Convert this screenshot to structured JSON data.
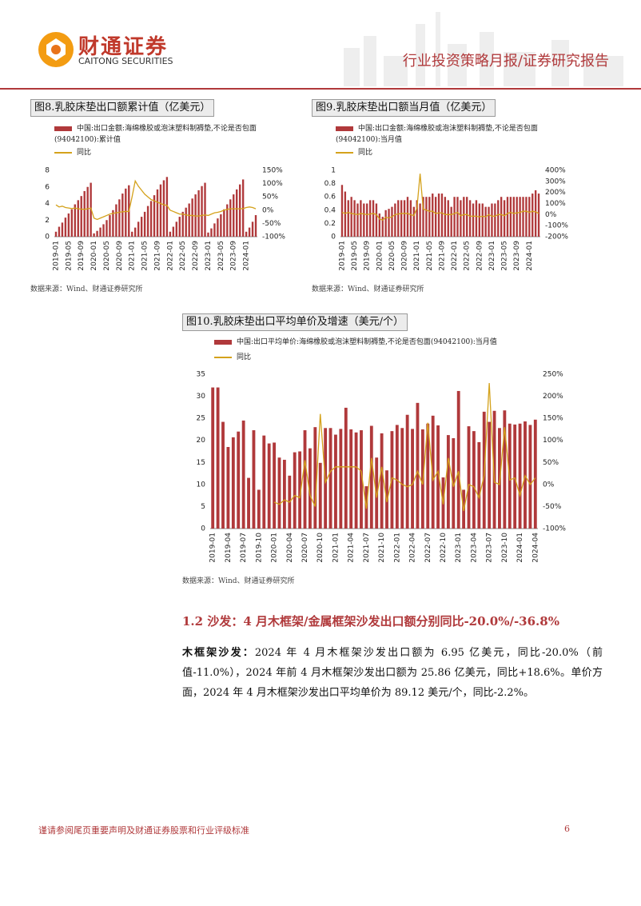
{
  "header": {
    "company_cn": "财通证券",
    "company_en": "CAITONG SECURITIES",
    "report_type": "行业投资策略月报/证券研究报告"
  },
  "chart_data": [
    {
      "type": "combo",
      "title": "图8.乳胶床垫出口额累计值（亿美元）",
      "source": "数据来源：Wind、财通证券研究所",
      "categories": [
        "2019-01",
        null,
        null,
        null,
        "2019-05",
        null,
        null,
        null,
        "2019-09",
        null,
        null,
        null,
        "2020-01",
        null,
        null,
        null,
        "2020-05",
        null,
        null,
        null,
        "2020-09",
        null,
        null,
        null,
        "2021-01",
        null,
        null,
        null,
        "2021-05",
        null,
        null,
        null,
        "2021-09",
        null,
        null,
        null,
        "2022-01",
        null,
        null,
        null,
        "2022-05",
        null,
        null,
        null,
        "2022-09",
        null,
        null,
        null,
        "2023-01",
        null,
        null,
        null,
        "2023-05",
        null,
        null,
        null,
        "2023-09",
        null,
        null,
        null,
        "2024-01",
        null,
        null,
        null
      ],
      "ylim": [
        0,
        8
      ],
      "yticks": [
        0,
        2,
        4,
        6,
        8
      ],
      "y2lim": [
        -100,
        150
      ],
      "y2ticks": [
        {
          "value": -100,
          "label": "-100%"
        },
        {
          "value": -50,
          "label": "-50%"
        },
        {
          "value": 0,
          "label": "0%"
        },
        {
          "value": 50,
          "label": "50%"
        },
        {
          "value": 100,
          "label": "100%"
        },
        {
          "value": 150,
          "label": "150%"
        }
      ],
      "grid": false,
      "series": [
        {
          "name": "中国:出口金额:海绵橡胶或泡沫塑料制褥垫,不论是否包面(94042100):累计值",
          "color": "#b0393b",
          "values": [
            0.6,
            1.2,
            1.7,
            2.3,
            2.8,
            3.3,
            3.9,
            4.4,
            4.9,
            5.5,
            6.0,
            6.5,
            0.4,
            0.7,
            1.1,
            1.5,
            2.0,
            2.6,
            3.2,
            3.9,
            4.5,
            5.2,
            5.8,
            6.2,
            0.6,
            1.1,
            1.8,
            2.4,
            3.0,
            3.7,
            4.3,
            5.0,
            5.7,
            6.3,
            6.8,
            7.2,
            0.6,
            1.2,
            1.8,
            2.4,
            3.0,
            3.5,
            4.0,
            4.6,
            5.1,
            5.6,
            6.1,
            6.5,
            0.5,
            1.0,
            1.6,
            2.2,
            2.7,
            3.3,
            3.9,
            4.5,
            5.1,
            5.7,
            6.3,
            6.9,
            0.6,
            1.1,
            1.8,
            2.6
          ]
        },
        {
          "name": "同比",
          "color": "#d4a21c",
          "axis": "y2",
          "values": [
            20,
            12,
            15,
            10,
            8,
            6,
            8,
            5,
            4,
            3,
            5,
            8,
            -30,
            -35,
            -30,
            -25,
            -20,
            -15,
            -12,
            -10,
            -8,
            -6,
            -5,
            -5,
            50,
            110,
            90,
            75,
            60,
            50,
            40,
            35,
            30,
            25,
            20,
            18,
            0,
            -5,
            -10,
            -15,
            -15,
            -18,
            -20,
            -20,
            -22,
            -22,
            -20,
            -18,
            -20,
            -15,
            -10,
            -8,
            -5,
            0,
            3,
            5,
            5,
            5,
            5,
            6,
            10,
            12,
            10,
            5
          ]
        }
      ]
    },
    {
      "type": "combo",
      "title": "图9.乳胶床垫出口额当月值（亿美元）",
      "source": "数据来源：Wind、财通证券研究所",
      "categories": [
        "2019-01",
        null,
        null,
        null,
        "2019-05",
        null,
        null,
        null,
        "2019-09",
        null,
        null,
        null,
        "2020-01",
        null,
        null,
        null,
        "2020-05",
        null,
        null,
        null,
        "2020-09",
        null,
        null,
        null,
        "2021-01",
        null,
        null,
        null,
        "2021-05",
        null,
        null,
        null,
        "2021-09",
        null,
        null,
        null,
        "2022-01",
        null,
        null,
        null,
        "2022-05",
        null,
        null,
        null,
        "2022-09",
        null,
        null,
        null,
        "2023-01",
        null,
        null,
        null,
        "2023-05",
        null,
        null,
        null,
        "2023-09",
        null,
        null,
        null,
        "2024-01",
        null,
        null,
        null
      ],
      "ylim": [
        0,
        1
      ],
      "yticks": [
        0,
        0.2,
        0.4,
        0.6,
        0.8,
        1
      ],
      "y2lim": [
        -200,
        400
      ],
      "y2ticks": [
        {
          "value": -200,
          "label": "-200%"
        },
        {
          "value": -100,
          "label": "-100%"
        },
        {
          "value": 0,
          "label": "0%"
        },
        {
          "value": 100,
          "label": "100%"
        },
        {
          "value": 200,
          "label": "200%"
        },
        {
          "value": 300,
          "label": "300%"
        },
        {
          "value": 400,
          "label": "400%"
        }
      ],
      "grid": false,
      "series": [
        {
          "name": "中国:出口金额:海绵橡胶或泡沫塑料制褥垫,不论是否包面(94042100):当月值",
          "color": "#b0393b",
          "values": [
            0.78,
            0.68,
            0.55,
            0.6,
            0.55,
            0.5,
            0.55,
            0.5,
            0.5,
            0.55,
            0.55,
            0.5,
            0.35,
            0.3,
            0.4,
            0.42,
            0.45,
            0.5,
            0.55,
            0.55,
            0.55,
            0.6,
            0.55,
            0.45,
            0.55,
            0.5,
            0.6,
            0.6,
            0.6,
            0.65,
            0.6,
            0.65,
            0.65,
            0.6,
            0.55,
            0.45,
            0.6,
            0.6,
            0.55,
            0.6,
            0.6,
            0.55,
            0.5,
            0.55,
            0.5,
            0.5,
            0.45,
            0.45,
            0.5,
            0.5,
            0.55,
            0.6,
            0.55,
            0.6,
            0.6,
            0.6,
            0.6,
            0.6,
            0.6,
            0.6,
            0.6,
            0.65,
            0.7,
            0.65
          ]
        },
        {
          "name": "同比",
          "color": "#d4a21c",
          "axis": "y2",
          "values": [
            20,
            10,
            20,
            10,
            5,
            0,
            10,
            5,
            0,
            5,
            10,
            0,
            -40,
            -50,
            -25,
            -30,
            -20,
            0,
            5,
            10,
            10,
            10,
            0,
            -10,
            60,
            370,
            50,
            40,
            30,
            30,
            10,
            15,
            15,
            0,
            0,
            0,
            10,
            20,
            -10,
            0,
            0,
            -15,
            -15,
            -15,
            -20,
            -15,
            -20,
            0,
            -15,
            -15,
            0,
            0,
            -10,
            10,
            20,
            10,
            15,
            20,
            30,
            30,
            20,
            30,
            25,
            10
          ]
        }
      ]
    },
    {
      "type": "combo",
      "title": "图10.乳胶床垫出口平均单价及增速（美元/个）",
      "source": "数据来源：Wind、财通证券研究所",
      "categories": [
        "2019-01",
        null,
        null,
        "2019-04",
        null,
        null,
        "2019-07",
        null,
        null,
        "2019-10",
        null,
        null,
        "2020-01",
        null,
        null,
        "2020-04",
        null,
        null,
        "2020-07",
        null,
        null,
        "2020-10",
        null,
        null,
        "2021-01",
        null,
        null,
        "2021-04",
        null,
        null,
        "2021-07",
        null,
        null,
        "2021-10",
        null,
        null,
        "2022-01",
        null,
        null,
        "2022-04",
        null,
        null,
        "2022-07",
        null,
        null,
        "2022-10",
        null,
        null,
        "2023-01",
        null,
        null,
        "2023-04",
        null,
        null,
        "2023-07",
        null,
        null,
        "2023-10",
        null,
        null,
        "2024-01",
        null,
        null,
        "2024-04"
      ],
      "ylim": [
        0,
        35
      ],
      "yticks": [
        0,
        5,
        10,
        15,
        20,
        25,
        30,
        35
      ],
      "y2lim": [
        -100,
        250
      ],
      "y2ticks": [
        {
          "value": -100,
          "label": "-100%"
        },
        {
          "value": -50,
          "label": "-50%"
        },
        {
          "value": 0,
          "label": "0%"
        },
        {
          "value": 50,
          "label": "50%"
        },
        {
          "value": 100,
          "label": "100%"
        },
        {
          "value": 150,
          "label": "150%"
        },
        {
          "value": 200,
          "label": "200%"
        },
        {
          "value": 250,
          "label": "250%"
        }
      ],
      "grid": false,
      "series": [
        {
          "name": "中国:出口平均单价:海绵橡胶或泡沫塑料制褥垫,不论是否包面(94042100):当月值",
          "color": "#b0393b",
          "values": [
            32,
            32,
            24.2,
            18.5,
            20.7,
            22,
            24.5,
            11.5,
            22.3,
            8.8,
            21.1,
            19.3,
            19.5,
            16.1,
            15.6,
            12,
            17.3,
            17.5,
            22.3,
            18.2,
            23,
            14.9,
            22.8,
            22.8,
            21.3,
            22.6,
            27.4,
            22.5,
            21.8,
            22.3,
            9.6,
            23.3,
            16.1,
            21.6,
            13.2,
            22.1,
            23.5,
            22.8,
            25.8,
            22.6,
            28.5,
            22.5,
            23.8,
            25.6,
            23.4,
            11.6,
            21.2,
            20.5,
            31.2,
            8.8,
            23.2,
            22.1,
            19.6,
            26.5,
            24.2,
            26.7,
            22.8,
            26.8,
            23.8,
            23.6,
            23.8,
            24.3,
            23.5,
            24.7
          ]
        },
        {
          "name": "同比",
          "color": "#d4a21c",
          "axis": "y2",
          "values": [
            null,
            null,
            null,
            null,
            null,
            null,
            null,
            null,
            null,
            null,
            null,
            null,
            -40,
            -45,
            -35,
            -40,
            -25,
            -30,
            55,
            -25,
            -50,
            160,
            5,
            30,
            40,
            40,
            40,
            40,
            40,
            30,
            -55,
            60,
            -30,
            40,
            -40,
            15,
            10,
            0,
            -5,
            0,
            30,
            0,
            140,
            10,
            30,
            -45,
            60,
            -5,
            30,
            -60,
            0,
            -5,
            -30,
            20,
            230,
            5,
            0,
            130,
            10,
            15,
            -25,
            20,
            0,
            15
          ]
        }
      ]
    }
  ],
  "section": {
    "heading": "1.2  沙发：4 月木框架/金属框架沙发出口额分别同比-20.0%/-36.8%",
    "lead": "木框架沙发：",
    "text": "2024 年 4 月木框架沙发出口额为 6.95 亿美元，同比-20.0%（前值-11.0%），2024 年前 4 月木框架沙发出口额为 25.86 亿美元，同比+18.6%。单价方面，2024 年 4 月木框架沙发出口平均单价为 89.12 美元/个，同比-2.2%。"
  },
  "footer": {
    "disclaimer": "谨请参阅尾页重要声明及财通证券股票和行业评级标准",
    "page_number": "6"
  }
}
